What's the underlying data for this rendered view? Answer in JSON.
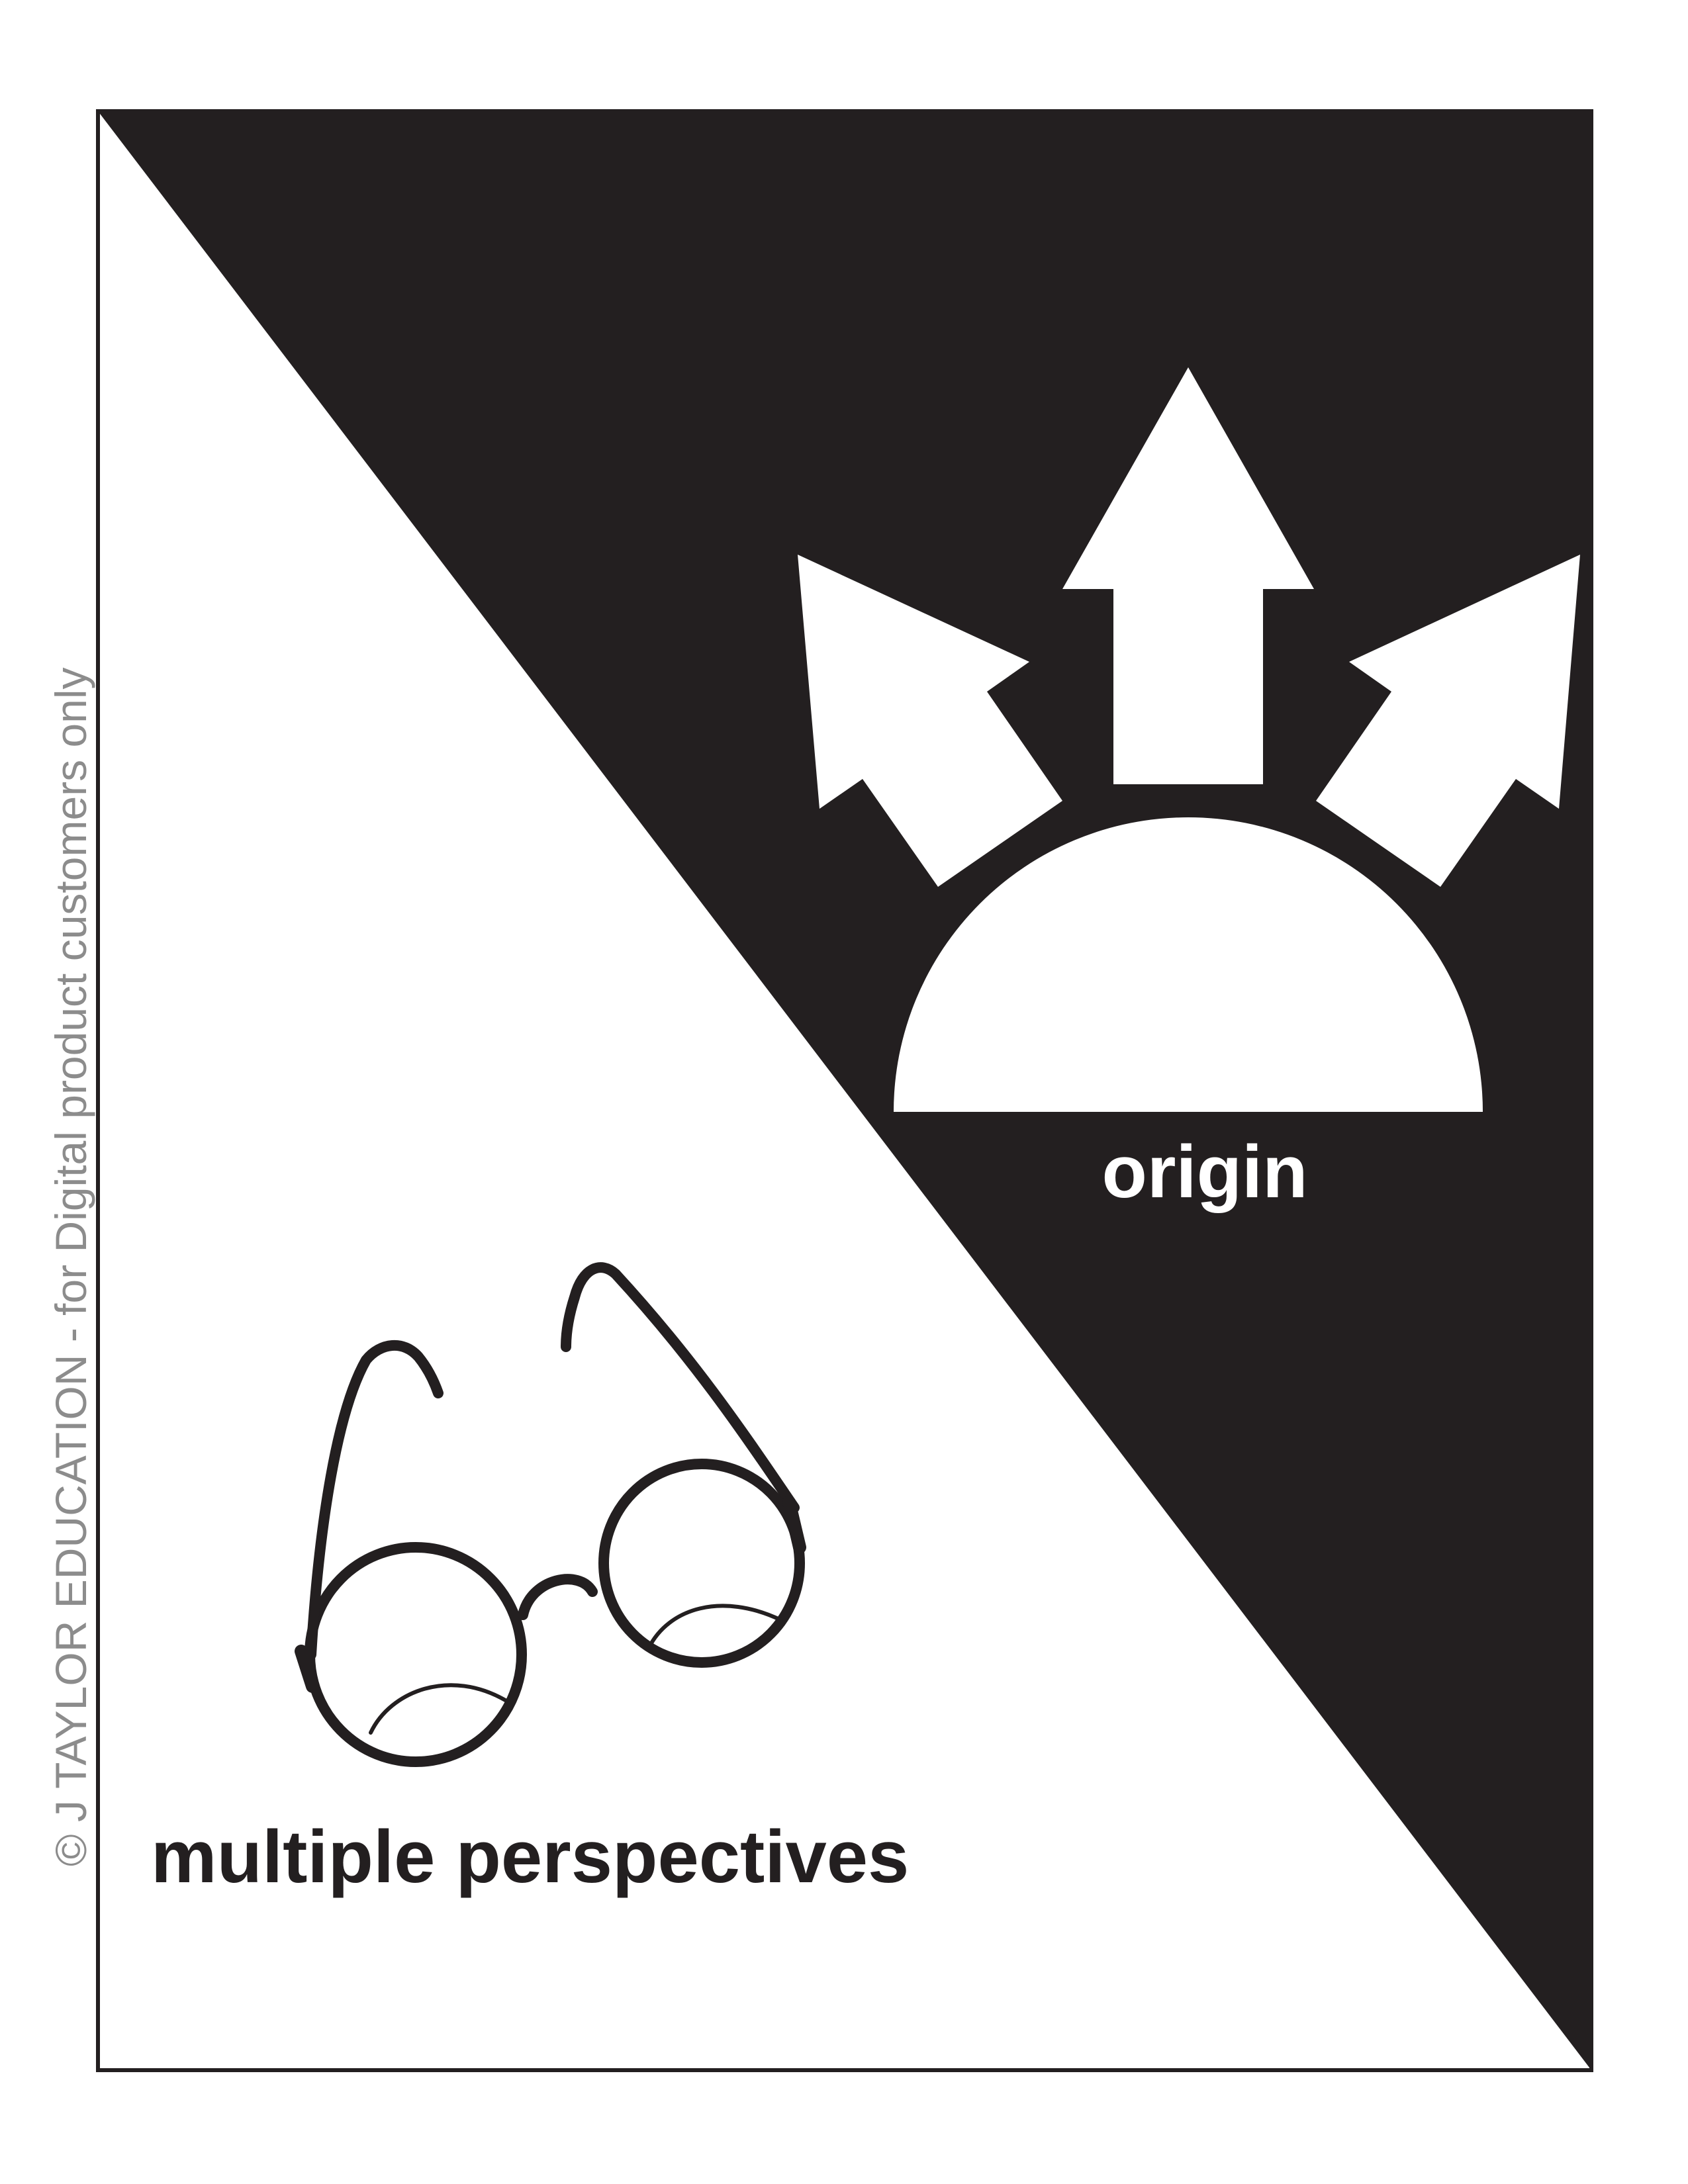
{
  "card": {
    "top_label": "origin",
    "bottom_label": "multiple perspectives",
    "watermark": "© J TAYLOR EDUCATION - for Digital product customers only"
  },
  "icons": {
    "top": "dome-with-arrows-icon",
    "bottom": "eyeglasses-icon"
  },
  "colors": {
    "dark": "#231f20",
    "light": "#ffffff",
    "watermark": "#8c8c8c"
  }
}
